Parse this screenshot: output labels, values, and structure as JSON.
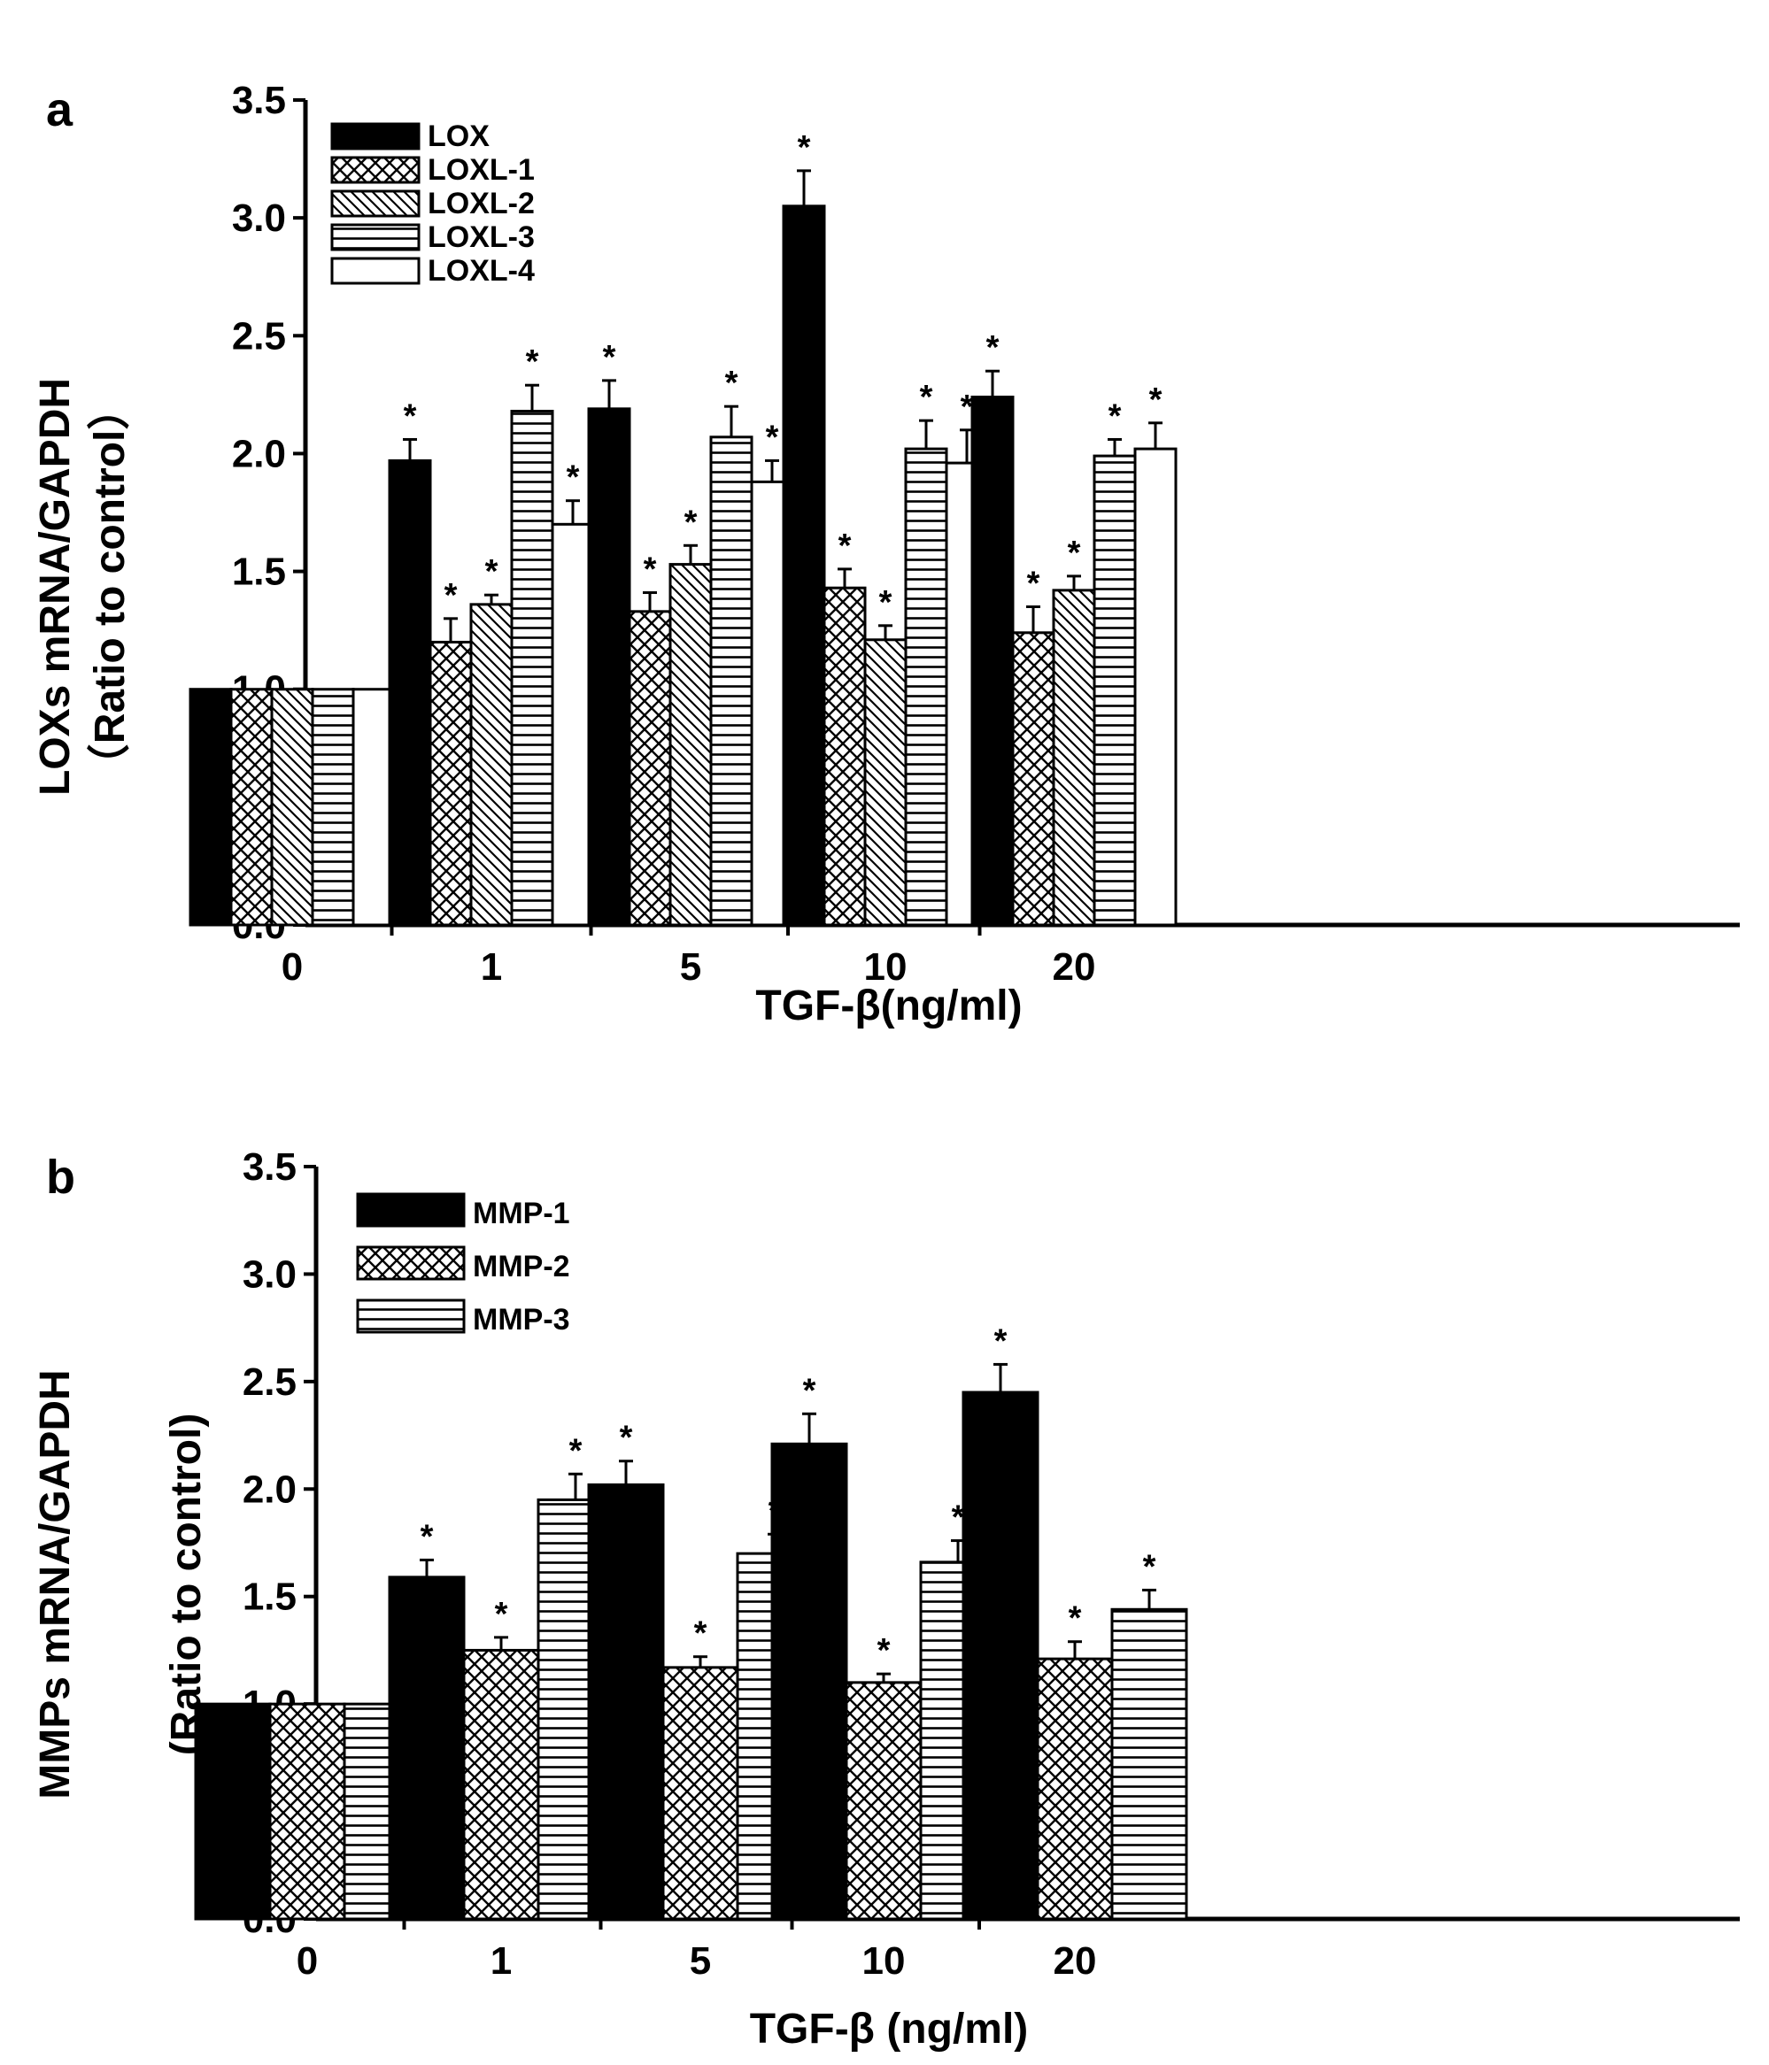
{
  "figure": {
    "panels": [
      "a",
      "b"
    ]
  },
  "chart_data": [
    {
      "type": "bar",
      "panel": "a",
      "xlabel": "TGF-β(ng/ml)",
      "ylabel_line1": "LOXs mRNA/GAPDH",
      "ylabel_line2": "（Ratio to control）",
      "categories": [
        "0",
        "1",
        "5",
        "10",
        "20"
      ],
      "ylim": [
        0,
        3.5
      ],
      "yticks": [
        "0.0",
        "0.5",
        "1.0",
        "1.5",
        "2.0",
        "2.5",
        "3.0",
        "3.5"
      ],
      "legend_position": "top-left",
      "series": [
        {
          "name": "LOX",
          "pattern": "solid",
          "values": [
            1.0,
            1.97,
            2.19,
            3.05,
            2.24
          ],
          "errors": [
            0,
            0.09,
            0.12,
            0.15,
            0.11
          ],
          "significant": [
            false,
            true,
            true,
            true,
            true
          ]
        },
        {
          "name": "LOXL-1",
          "pattern": "crosshatch",
          "values": [
            1.0,
            1.2,
            1.33,
            1.43,
            1.24
          ],
          "errors": [
            0,
            0.1,
            0.08,
            0.08,
            0.11
          ],
          "significant": [
            false,
            true,
            true,
            true,
            true
          ]
        },
        {
          "name": "LOXL-2",
          "pattern": "diagonal",
          "values": [
            1.0,
            1.36,
            1.53,
            1.21,
            1.42
          ],
          "errors": [
            0,
            0.04,
            0.08,
            0.06,
            0.06
          ],
          "significant": [
            false,
            true,
            true,
            true,
            true
          ]
        },
        {
          "name": "LOXL-3",
          "pattern": "horizontal",
          "values": [
            1.0,
            2.18,
            2.07,
            2.02,
            1.99
          ],
          "errors": [
            0,
            0.11,
            0.13,
            0.12,
            0.07
          ],
          "significant": [
            false,
            true,
            true,
            true,
            true
          ]
        },
        {
          "name": "LOXL-4",
          "pattern": "white",
          "values": [
            1.0,
            1.7,
            1.88,
            1.96,
            2.02
          ],
          "errors": [
            0,
            0.1,
            0.09,
            0.14,
            0.11
          ],
          "significant": [
            false,
            true,
            true,
            true,
            true
          ]
        }
      ]
    },
    {
      "type": "bar",
      "panel": "b",
      "xlabel": "TGF-β (ng/ml)",
      "ylabel_line1": "MMPs mRNA/GAPDH",
      "ylabel_line2": "(Ratio to control)",
      "categories": [
        "0",
        "1",
        "5",
        "10",
        "20"
      ],
      "ylim": [
        0,
        3.5
      ],
      "yticks": [
        "0.0",
        "0.5",
        "1.0",
        "1.5",
        "2.0",
        "2.5",
        "3.0",
        "3.5"
      ],
      "legend_position": "top-left",
      "series": [
        {
          "name": "MMP-1",
          "pattern": "solid",
          "values": [
            1.0,
            1.59,
            2.02,
            2.21,
            2.45
          ],
          "errors": [
            0,
            0.08,
            0.11,
            0.14,
            0.13
          ],
          "significant": [
            false,
            true,
            true,
            true,
            true
          ]
        },
        {
          "name": "MMP-2",
          "pattern": "crosshatch",
          "values": [
            1.0,
            1.25,
            1.17,
            1.1,
            1.21
          ],
          "errors": [
            0,
            0.06,
            0.05,
            0.04,
            0.08
          ],
          "significant": [
            false,
            true,
            true,
            true,
            true
          ]
        },
        {
          "name": "MMP-3",
          "pattern": "horizontal",
          "values": [
            1.0,
            1.95,
            1.7,
            1.66,
            1.44
          ],
          "errors": [
            0,
            0.12,
            0.09,
            0.1,
            0.09
          ],
          "significant": [
            false,
            true,
            true,
            true,
            true
          ]
        }
      ]
    }
  ]
}
